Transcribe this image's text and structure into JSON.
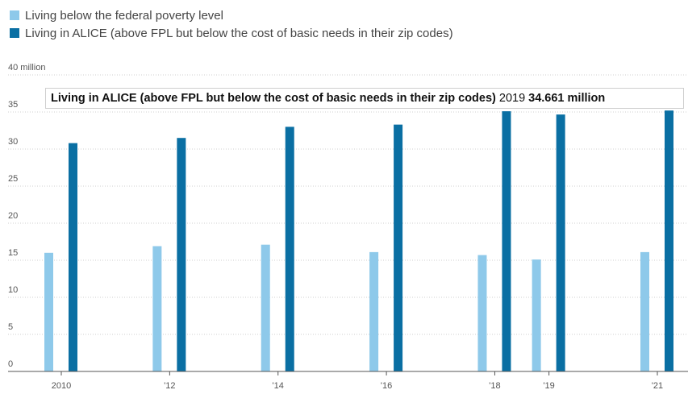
{
  "legend": {
    "items": [
      {
        "label": "Living below the federal poverty level",
        "color": "#8ec9ea"
      },
      {
        "label": "Living in ALICE (above FPL but below the cost of basic needs in their zip codes)",
        "color": "#0a6fa3"
      }
    ]
  },
  "tooltip": {
    "series_label": "Living in ALICE (above FPL but below the cost of basic needs in their zip codes)",
    "year": "2019",
    "value": "34.661 million"
  },
  "chart_data": {
    "type": "bar",
    "ylim": [
      0,
      40
    ],
    "y_ticks": [
      {
        "value": 0,
        "label": "0"
      },
      {
        "value": 5,
        "label": "5"
      },
      {
        "value": 10,
        "label": "10"
      },
      {
        "value": 15,
        "label": "15"
      },
      {
        "value": 20,
        "label": "20"
      },
      {
        "value": 25,
        "label": "25"
      },
      {
        "value": 30,
        "label": "30"
      },
      {
        "value": 35,
        "label": "35"
      },
      {
        "value": 40,
        "label": "40 million"
      }
    ],
    "categories": [
      "2010",
      "'12",
      "'14",
      "'16",
      "'18",
      "'19",
      "'21"
    ],
    "category_years": [
      2010,
      2012,
      2014,
      2016,
      2018,
      2019,
      2021
    ],
    "series": [
      {
        "name": "Living below the federal poverty level",
        "color": "#8ec9ea",
        "values": [
          16.0,
          16.9,
          17.1,
          16.1,
          15.7,
          15.1,
          16.1
        ]
      },
      {
        "name": "Living in ALICE (above FPL but below the cost of basic needs in their zip codes)",
        "color": "#0a6fa3",
        "values": [
          30.8,
          31.5,
          33.0,
          33.3,
          35.1,
          34.661,
          35.2
        ]
      }
    ]
  }
}
